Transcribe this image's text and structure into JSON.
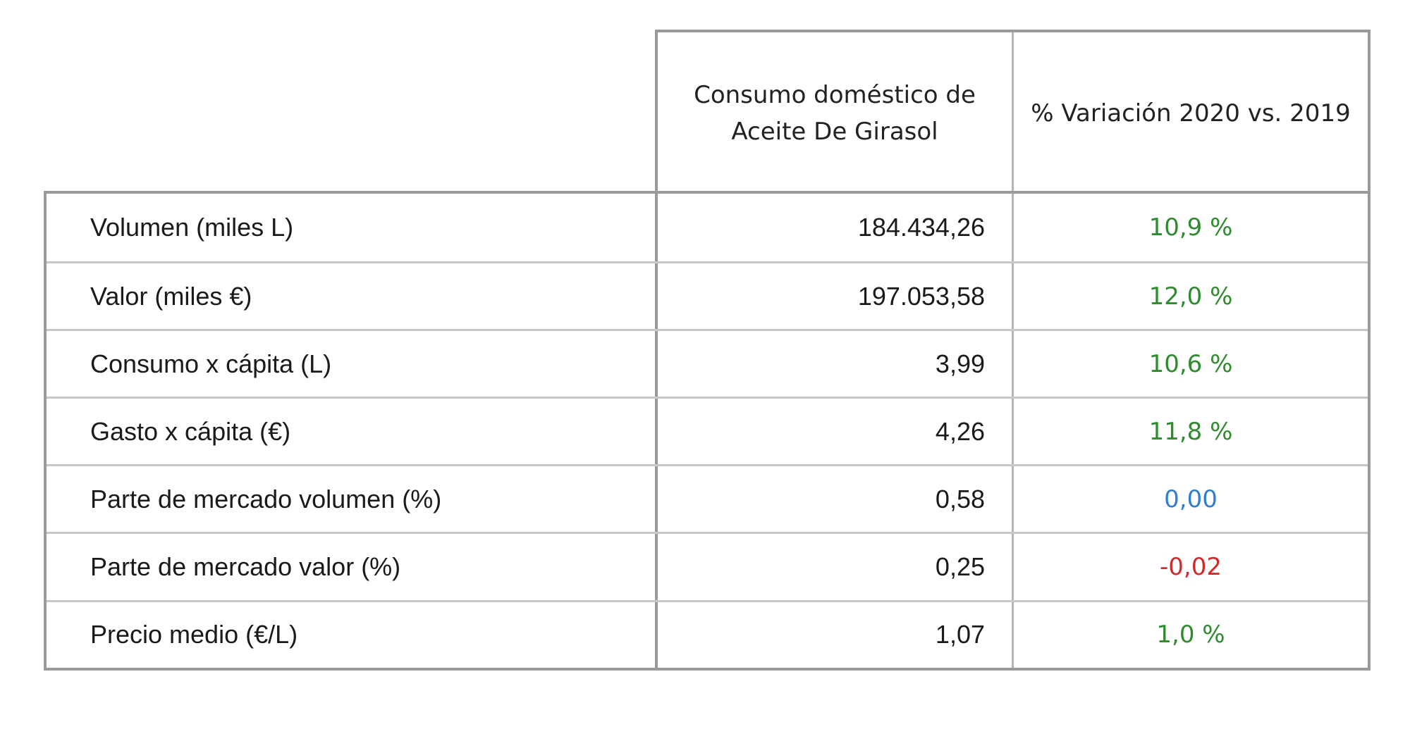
{
  "table": {
    "headers": {
      "consumo": "Consumo doméstico de Aceite De Girasol",
      "variacion": "% Variación 2020 vs. 2019"
    },
    "rows": [
      {
        "label": "Volumen (miles L)",
        "value": "184.434,26",
        "change": "10,9 %",
        "change_color": "#2e8b2e"
      },
      {
        "label": "Valor (miles €)",
        "value": "197.053,58",
        "change": "12,0 %",
        "change_color": "#2e8b2e"
      },
      {
        "label": "Consumo x cápita (L)",
        "value": "3,99",
        "change": "10,6 %",
        "change_color": "#2e8b2e"
      },
      {
        "label": "Gasto x cápita (€)",
        "value": "4,26",
        "change": "11,8 %",
        "change_color": "#2e8b2e"
      },
      {
        "label": "Parte de mercado volumen (%)",
        "value": "0,58",
        "change": "0,00",
        "change_color": "#2f7fd0"
      },
      {
        "label": "Parte de mercado valor (%)",
        "value": "0,25",
        "change": "-0,02",
        "change_color": "#d02a2a"
      },
      {
        "label": "Precio medio (€/L)",
        "value": "1,07",
        "change": "1,0 %",
        "change_color": "#2e8b2e"
      }
    ]
  }
}
